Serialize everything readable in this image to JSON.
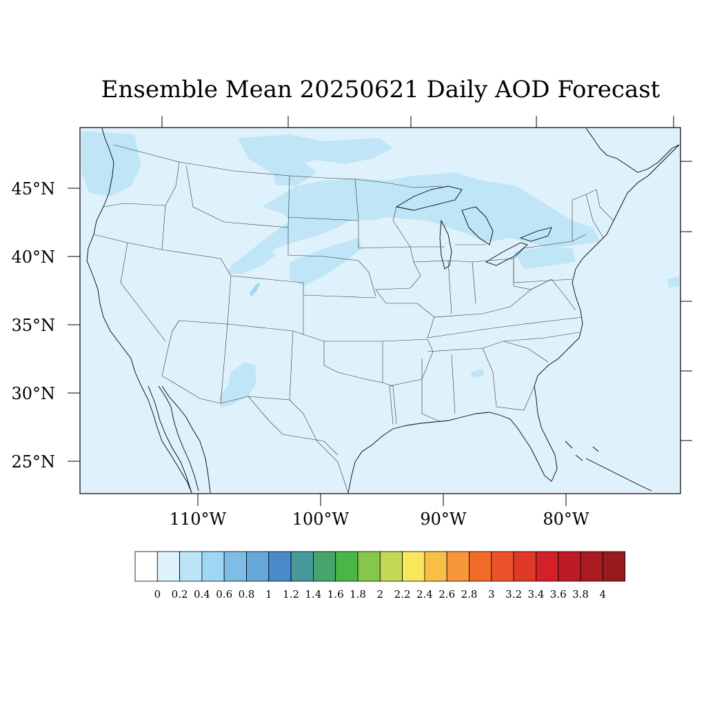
{
  "title": "Ensemble Mean 20250621 Daily AOD Forecast",
  "map": {
    "background_color": "#dff2fb",
    "plume_color": "#bfe5f7",
    "plume_dark_color": "#a2d8f3",
    "border_color": "#000000",
    "lat_ticks": [
      "45°N",
      "40°N",
      "35°N",
      "30°N",
      "25°N"
    ],
    "lon_ticks": [
      "110°W",
      "100°W",
      "90°W",
      "80°W"
    ]
  },
  "colorbar": {
    "colors": [
      "#ffffff",
      "#def2fb",
      "#bde5f7",
      "#9dd7f4",
      "#7fbde6",
      "#66a7da",
      "#4a8ac8",
      "#48999a",
      "#45a56a",
      "#4bb648",
      "#86c64c",
      "#c5d855",
      "#f8e75a",
      "#f8bf47",
      "#f7963b",
      "#f36b2b",
      "#ec5229",
      "#e03a27",
      "#d42029",
      "#bf1b25",
      "#a91a21",
      "#961a1e"
    ],
    "labels": [
      "0",
      "0.2",
      "0.4",
      "0.6",
      "0.8",
      "1",
      "1.2",
      "1.4",
      "1.6",
      "1.8",
      "2",
      "2.2",
      "2.4",
      "2.6",
      "2.8",
      "3",
      "3.2",
      "3.4",
      "3.6",
      "3.8",
      "4"
    ]
  }
}
